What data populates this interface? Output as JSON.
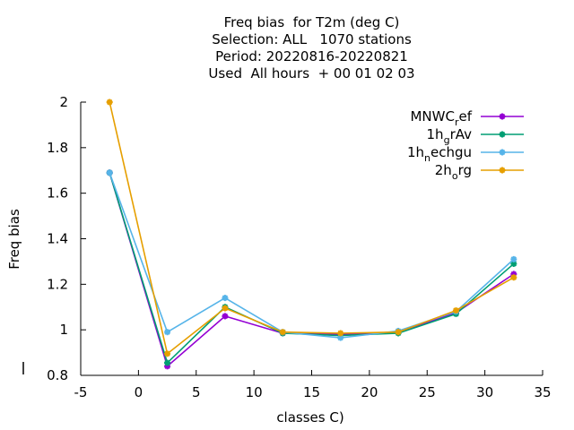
{
  "chart_data": {
    "type": "line",
    "title_lines": [
      "Freq bias  for T2m (deg C)",
      "Selection: ALL   1070 stations",
      "Period: 20220816-20220821",
      "Used  All hours  + 00 01 02 03"
    ],
    "xlabel": "classes C)",
    "ylabel": "Freq bias",
    "xlim": [
      -5,
      35
    ],
    "ylim": [
      0.8,
      2.0
    ],
    "xticks": [
      -5,
      0,
      5,
      10,
      15,
      20,
      25,
      30,
      35
    ],
    "yticks": [
      0.8,
      1,
      1.2,
      1.4,
      1.6,
      1.8,
      2
    ],
    "ytick_labels": [
      "0.8",
      "1",
      "1.2",
      "1.4",
      "1.6",
      "1.8",
      "2"
    ],
    "x": [
      -2.5,
      2.5,
      7.5,
      12.5,
      17.5,
      22.5,
      27.5,
      32.5
    ],
    "legend_position": "top-right",
    "grid": false,
    "series": [
      {
        "name_main": "MNWC",
        "name_sub": "r",
        "name_rest": "ef",
        "color": "#9400d3",
        "values": [
          1.69,
          0.84,
          1.06,
          0.985,
          0.98,
          0.99,
          1.075,
          1.245
        ]
      },
      {
        "name_main": "1h",
        "name_sub": "g",
        "name_rest": "rAv",
        "color": "#009e73",
        "values": [
          1.69,
          0.855,
          1.1,
          0.985,
          0.975,
          0.985,
          1.07,
          1.29
        ]
      },
      {
        "name_main": "1h",
        "name_sub": "n",
        "name_rest": "echgu",
        "color": "#56b4e9",
        "values": [
          1.69,
          0.99,
          1.14,
          0.99,
          0.965,
          0.995,
          1.08,
          1.31
        ]
      },
      {
        "name_main": "2h",
        "name_sub": "o",
        "name_rest": "rg",
        "color": "#e69f00",
        "values": [
          2.0,
          0.895,
          1.095,
          0.99,
          0.985,
          0.99,
          1.085,
          1.23
        ]
      }
    ]
  }
}
